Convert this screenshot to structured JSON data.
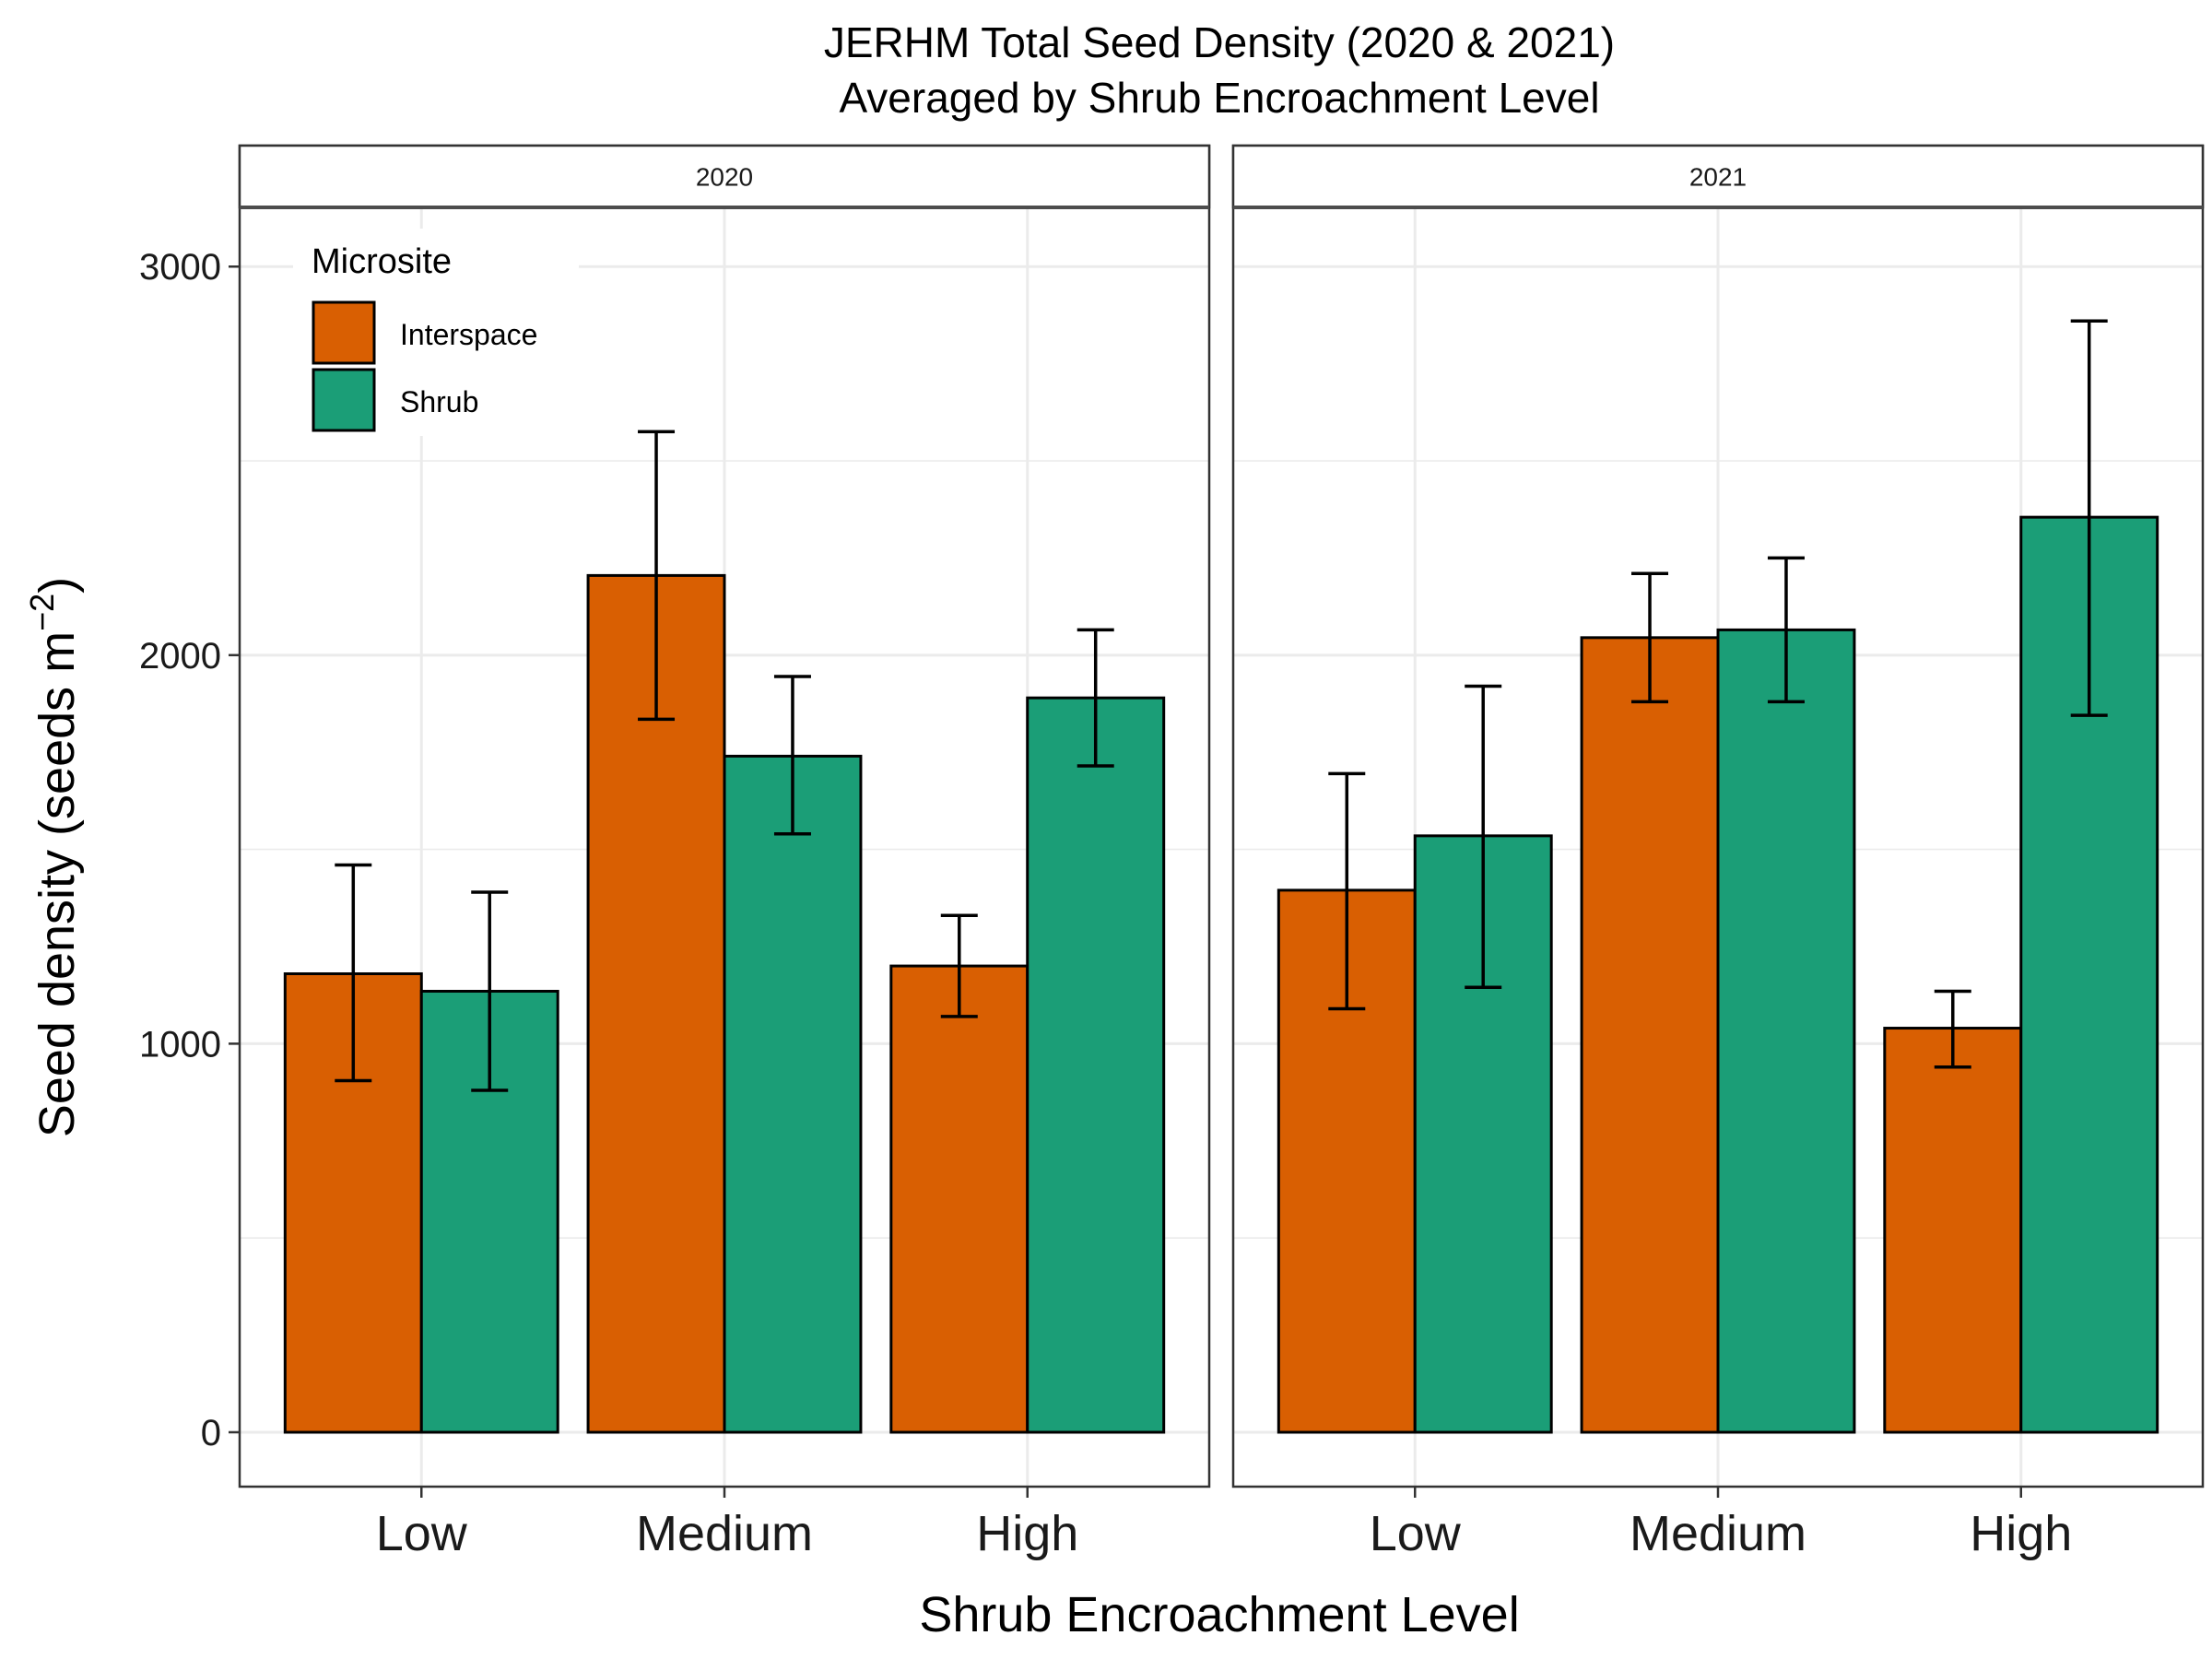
{
  "chart_data": {
    "type": "bar",
    "title": "JERHM Total Seed Density (2020 & 2021)",
    "subtitle": "Averaged by Shrub Encroachment Level",
    "xlabel": "Shrub Encroachment Level",
    "ylabel": "Seed density (seeds m",
    "ylabel_superscript": "−2",
    "ylabel_close": ")",
    "ylim": [
      -140,
      3150
    ],
    "yticks": [
      0,
      1000,
      2000,
      3000
    ],
    "grid": true,
    "legend": {
      "title": "Microsite",
      "position": "top-left"
    },
    "categories": [
      "Low",
      "Medium",
      "High"
    ],
    "colors": {
      "Interspace": "#D95F02",
      "Shrub": "#1B9E77"
    },
    "panels": [
      {
        "label": "2020",
        "series": [
          {
            "name": "Interspace",
            "values": [
              1180,
              2205,
              1200
            ],
            "error_lower": [
              905,
              1835,
              1070
            ],
            "error_upper": [
              1460,
              2575,
              1330
            ]
          },
          {
            "name": "Shrub",
            "values": [
              1135,
              1740,
              1890
            ],
            "error_lower": [
              880,
              1540,
              1715
            ],
            "error_upper": [
              1390,
              1945,
              2065
            ]
          }
        ]
      },
      {
        "label": "2021",
        "series": [
          {
            "name": "Interspace",
            "values": [
              1395,
              2045,
              1040
            ],
            "error_lower": [
              1090,
              1880,
              940
            ],
            "error_upper": [
              1695,
              2210,
              1135
            ]
          },
          {
            "name": "Shrub",
            "values": [
              1535,
              2065,
              2355
            ],
            "error_lower": [
              1145,
              1880,
              1845
            ],
            "error_upper": [
              1920,
              2250,
              2860
            ]
          }
        ]
      }
    ]
  }
}
